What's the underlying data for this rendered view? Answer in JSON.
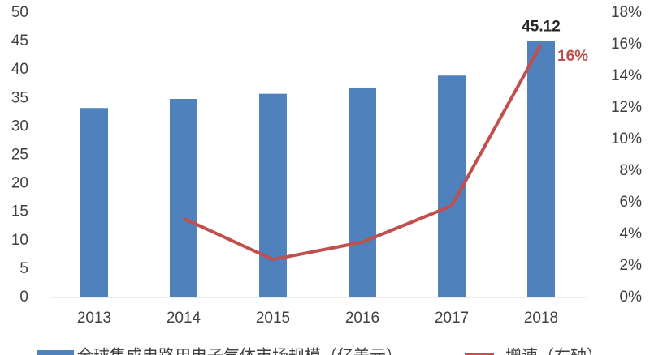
{
  "chart_data": {
    "type": "bar-line",
    "categories": [
      "2013",
      "2014",
      "2015",
      "2016",
      "2017",
      "2018"
    ],
    "series": [
      {
        "name": "全球集成电路用电子气体市场规模（亿美元）",
        "type": "bar",
        "color": "#4f81bd",
        "values": [
          33.3,
          34.9,
          35.8,
          36.9,
          39.0,
          45.12
        ],
        "value_labels": [
          null,
          null,
          null,
          null,
          null,
          "45.12"
        ]
      },
      {
        "name": "增速（右轴）",
        "type": "line",
        "axis": "y2",
        "color": "#c0504d",
        "values": [
          null,
          5.0,
          2.4,
          3.5,
          5.8,
          16
        ],
        "value_labels": [
          null,
          null,
          null,
          null,
          null,
          "16%"
        ]
      }
    ],
    "ylim": [
      0,
      50
    ],
    "yticks": [
      0,
      5,
      10,
      15,
      20,
      25,
      30,
      35,
      40,
      45,
      50
    ],
    "y2lim": [
      0,
      18
    ],
    "y2ticks": [
      {
        "value": 0,
        "label": "0%"
      },
      {
        "value": 2,
        "label": "2%"
      },
      {
        "value": 4,
        "label": "4%"
      },
      {
        "value": 6,
        "label": "6%"
      },
      {
        "value": 8,
        "label": "8%"
      },
      {
        "value": 10,
        "label": "10%"
      },
      {
        "value": 12,
        "label": "12%"
      },
      {
        "value": 14,
        "label": "14%"
      },
      {
        "value": 16,
        "label": "16%"
      },
      {
        "value": 18,
        "label": "18%"
      }
    ],
    "grid": false,
    "legend": "bottom"
  }
}
